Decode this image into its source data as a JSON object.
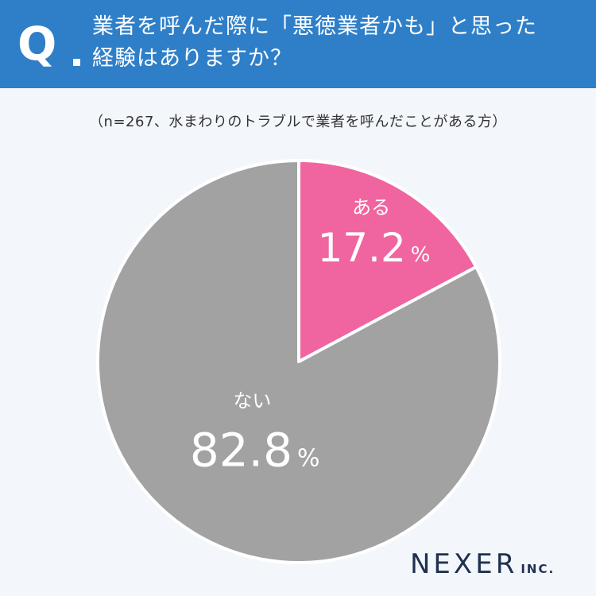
{
  "header": {
    "q_label": "Q",
    "question_line1": "業者を呼んだ際に「悪徳業者かも」と思った",
    "question_line2": "経験はありますか？"
  },
  "note": "（n=267、水まわりのトラブルで業者を呼んだことがある方）",
  "logo": {
    "main": "NEXER",
    "sub": "INC."
  },
  "chart_data": {
    "type": "pie",
    "title": "",
    "categories": [
      "ある",
      "ない"
    ],
    "values": [
      17.2,
      82.8
    ],
    "value_labels": [
      "17.2",
      "82.8"
    ],
    "unit": "%",
    "colors": [
      "#f0659f",
      "#a2a2a2"
    ],
    "legend": "none",
    "start_angle": "top, clockwise"
  }
}
